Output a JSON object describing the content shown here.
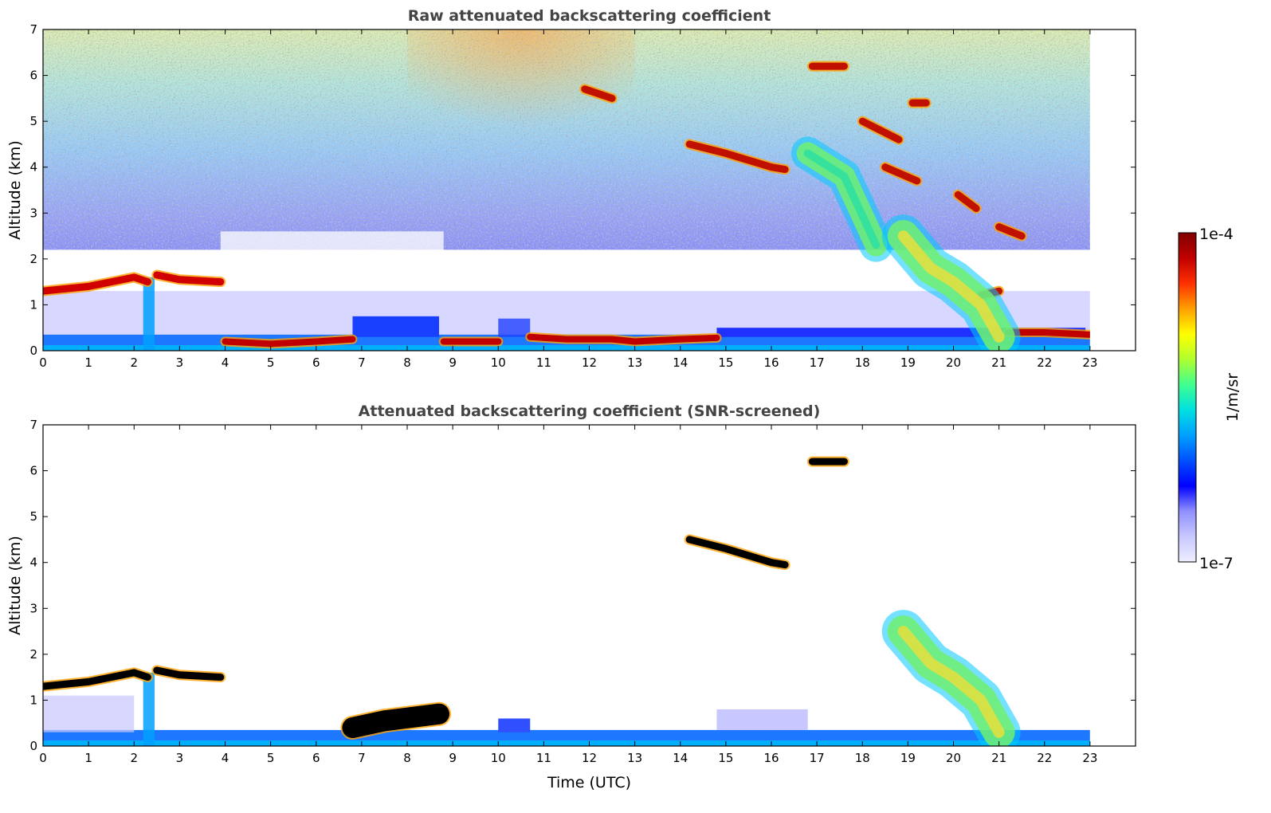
{
  "colors": {
    "title": "#444444",
    "axis": "#000000",
    "colormap": [
      "#eeeeff",
      "#c8c8ff",
      "#9090ff",
      "#0000ff",
      "#0050ff",
      "#00a0ff",
      "#00e0e0",
      "#40ff90",
      "#b0ff30",
      "#ffff00",
      "#ffa000",
      "#ff3000",
      "#c00000",
      "#800000"
    ],
    "cloud_core": "#000000"
  },
  "colorbar": {
    "label": "1/m/sr",
    "max_label": "1e-4",
    "min_label": "1e-7",
    "scale": "log",
    "range": [
      1e-07,
      0.0001
    ]
  },
  "chart_data": [
    {
      "type": "heatmap",
      "title": "Raw attenuated backscattering coefficient",
      "xlabel": "",
      "ylabel": "Altitude (km)",
      "xlim": [
        0,
        24
      ],
      "ylim": [
        0,
        7
      ],
      "xticks": [
        "0",
        "1",
        "2",
        "3",
        "4",
        "5",
        "6",
        "7",
        "8",
        "9",
        "10",
        "11",
        "12",
        "13",
        "14",
        "15",
        "16",
        "17",
        "18",
        "19",
        "20",
        "21",
        "22",
        "23"
      ],
      "yticks": [
        "0",
        "1",
        "2",
        "3",
        "4",
        "5",
        "6",
        "7"
      ],
      "data_end_time": 23,
      "features": [
        {
          "kind": "boundary-layer-top",
          "t": [
            0,
            1,
            2,
            2.3
          ],
          "alt": [
            1.3,
            1.4,
            1.6,
            1.5
          ]
        },
        {
          "kind": "boundary-layer-top",
          "t": [
            2.5,
            3,
            3.9
          ],
          "alt": [
            1.65,
            1.55,
            1.5
          ]
        },
        {
          "kind": "fog-layer",
          "t": [
            4,
            5,
            6,
            6.8
          ],
          "alt": [
            0.2,
            0.15,
            0.2,
            0.25
          ]
        },
        {
          "kind": "fog-layer",
          "t": [
            8.8,
            9.5,
            10
          ],
          "alt": [
            0.2,
            0.2,
            0.2
          ]
        },
        {
          "kind": "fog-layer",
          "t": [
            10.7,
            11.5,
            12.5,
            13,
            14,
            14.8
          ],
          "alt": [
            0.3,
            0.25,
            0.25,
            0.2,
            0.25,
            0.28
          ]
        },
        {
          "kind": "fog-layer",
          "t": [
            21.2,
            22,
            23
          ],
          "alt": [
            0.4,
            0.4,
            0.35
          ]
        },
        {
          "kind": "cloud",
          "t": [
            14.2,
            15,
            16,
            16.3
          ],
          "alt": [
            4.5,
            4.3,
            4.0,
            3.95
          ]
        },
        {
          "kind": "cloud",
          "t": [
            11.9,
            12.5
          ],
          "alt": [
            5.7,
            5.5
          ]
        },
        {
          "kind": "cloud",
          "t": [
            16.9,
            17.6
          ],
          "alt": [
            6.2,
            6.2
          ]
        },
        {
          "kind": "cloud",
          "t": [
            18,
            18.8
          ],
          "alt": [
            5.0,
            4.6
          ]
        },
        {
          "kind": "cloud",
          "t": [
            19.1,
            19.4
          ],
          "alt": [
            5.4,
            5.4
          ]
        },
        {
          "kind": "cloud",
          "t": [
            20.1,
            20.5
          ],
          "alt": [
            3.4,
            3.1
          ]
        },
        {
          "kind": "cloud",
          "t": [
            21.0,
            21.5
          ],
          "alt": [
            2.7,
            2.5
          ]
        },
        {
          "kind": "cloud",
          "t": [
            18.5,
            19.2
          ],
          "alt": [
            4.0,
            3.7
          ]
        },
        {
          "kind": "cloud",
          "t": [
            20.6,
            21.0
          ],
          "alt": [
            1.2,
            1.3
          ]
        },
        {
          "kind": "virga",
          "t": [
            16.8,
            17.6,
            18.3
          ],
          "alt": [
            4.3,
            3.8,
            2.3
          ]
        },
        {
          "kind": "precipitation",
          "t": [
            18.9,
            19.5,
            20.0,
            20.6,
            21.0
          ],
          "alt": [
            2.5,
            1.8,
            1.5,
            1.0,
            0.3
          ]
        }
      ]
    },
    {
      "type": "heatmap",
      "title": "Attenuated backscattering coefficient (SNR-screened)",
      "xlabel": "Time (UTC)",
      "ylabel": "Altitude (km)",
      "xlim": [
        0,
        24
      ],
      "ylim": [
        0,
        7
      ],
      "xticks": [
        "0",
        "1",
        "2",
        "3",
        "4",
        "5",
        "6",
        "7",
        "8",
        "9",
        "10",
        "11",
        "12",
        "13",
        "14",
        "15",
        "16",
        "17",
        "18",
        "19",
        "20",
        "21",
        "22",
        "23"
      ],
      "yticks": [
        "0",
        "1",
        "2",
        "3",
        "4",
        "5",
        "6",
        "7"
      ],
      "data_end_time": 23,
      "features": [
        {
          "kind": "boundary-layer-top",
          "t": [
            0,
            1,
            2,
            2.3
          ],
          "alt": [
            1.3,
            1.4,
            1.6,
            1.5
          ]
        },
        {
          "kind": "boundary-layer-top",
          "t": [
            2.5,
            3,
            3.9
          ],
          "alt": [
            1.65,
            1.55,
            1.5
          ]
        },
        {
          "kind": "aerosol-layer",
          "t": [
            6.8,
            7.5,
            8.7
          ],
          "alt": [
            0.4,
            0.55,
            0.7
          ]
        },
        {
          "kind": "cloud",
          "t": [
            14.2,
            15,
            16,
            16.3
          ],
          "alt": [
            4.5,
            4.3,
            4.0,
            3.95
          ]
        },
        {
          "kind": "cloud",
          "t": [
            16.9,
            17.6
          ],
          "alt": [
            6.2,
            6.2
          ]
        },
        {
          "kind": "precipitation",
          "t": [
            18.9,
            19.5,
            20.0,
            20.6,
            21.0
          ],
          "alt": [
            2.5,
            1.8,
            1.5,
            1.0,
            0.3
          ]
        }
      ]
    }
  ]
}
